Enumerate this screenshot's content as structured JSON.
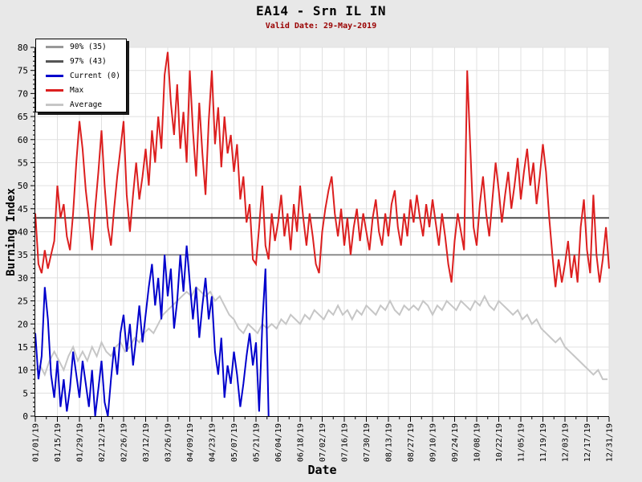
{
  "chart_data": {
    "type": "line",
    "title": "EA14 - Srn IL IN",
    "subtitle": "Valid Date: 29-May-2019",
    "subtitle_color": "#990000",
    "xlabel": "Date",
    "ylabel": "Burning Index",
    "ylim": [
      0,
      80
    ],
    "y_tick_step": 5,
    "y_minor_tick_step": 1,
    "x_domain_days": [
      1,
      365
    ],
    "x_minor_tick_offset_days": 7,
    "grid": true,
    "background": "#e8e8e8",
    "plot_background": "#ffffff",
    "grid_color": "#e0e0e0",
    "axis_color": "#000000",
    "x_ticks": [
      {
        "label": "01/01/19",
        "day": 1
      },
      {
        "label": "01/15/19",
        "day": 15
      },
      {
        "label": "01/29/19",
        "day": 29
      },
      {
        "label": "02/12/19",
        "day": 43
      },
      {
        "label": "02/26/19",
        "day": 57
      },
      {
        "label": "03/12/19",
        "day": 71
      },
      {
        "label": "03/26/19",
        "day": 85
      },
      {
        "label": "04/09/19",
        "day": 99
      },
      {
        "label": "04/23/19",
        "day": 113
      },
      {
        "label": "05/07/19",
        "day": 127
      },
      {
        "label": "05/21/19",
        "day": 141
      },
      {
        "label": "06/04/19",
        "day": 155
      },
      {
        "label": "06/18/19",
        "day": 169
      },
      {
        "label": "07/02/19",
        "day": 183
      },
      {
        "label": "07/16/19",
        "day": 197
      },
      {
        "label": "07/30/19",
        "day": 211
      },
      {
        "label": "08/13/19",
        "day": 225
      },
      {
        "label": "08/27/19",
        "day": 239
      },
      {
        "label": "09/10/19",
        "day": 253
      },
      {
        "label": "09/24/19",
        "day": 267
      },
      {
        "label": "10/08/19",
        "day": 281
      },
      {
        "label": "10/22/19",
        "day": 295
      },
      {
        "label": "11/05/19",
        "day": 309
      },
      {
        "label": "11/19/19",
        "day": 323
      },
      {
        "label": "12/03/19",
        "day": 337
      },
      {
        "label": "12/17/19",
        "day": 351
      },
      {
        "label": "12/31/19",
        "day": 365
      }
    ],
    "thresholds": [
      {
        "key": "90pct",
        "name": "90% (35)",
        "value": 35,
        "color": "#8c8c8c",
        "stroke_width": 2
      },
      {
        "key": "97pct",
        "name": "97% (43)",
        "value": 43,
        "color": "#4d4d4d",
        "stroke_width": 2
      }
    ],
    "series": [
      {
        "key": "average",
        "name": "Average",
        "color": "#c6c6c6",
        "stroke_width": 2,
        "start_day": 1,
        "step_days": 3,
        "values": [
          10,
          11,
          9,
          12,
          14,
          12,
          10,
          13,
          15,
          12,
          14,
          12,
          15,
          13,
          16,
          14,
          13,
          15,
          16,
          14,
          15,
          17,
          16,
          18,
          19,
          18,
          20,
          22,
          23,
          24,
          25,
          26,
          27,
          26,
          28,
          27,
          26,
          27,
          25,
          26,
          24,
          22,
          21,
          19,
          18,
          20,
          19,
          18,
          20,
          19,
          20,
          19,
          21,
          20,
          22,
          21,
          20,
          22,
          21,
          23,
          22,
          21,
          23,
          22,
          24,
          22,
          23,
          21,
          23,
          22,
          24,
          23,
          22,
          24,
          23,
          25,
          23,
          22,
          24,
          23,
          24,
          23,
          25,
          24,
          22,
          24,
          23,
          25,
          24,
          23,
          25,
          24,
          23,
          25,
          24,
          26,
          24,
          23,
          25,
          24,
          23,
          22,
          23,
          21,
          22,
          20,
          21,
          19,
          18,
          17,
          16,
          17,
          15,
          14,
          13,
          12,
          11,
          10,
          9,
          10,
          8,
          8
        ]
      },
      {
        "key": "current",
        "name": "Current (0)",
        "color": "#0000cc",
        "stroke_width": 2,
        "start_day": 1,
        "step_days": 2,
        "values": [
          18,
          8,
          13,
          28,
          21,
          9,
          4,
          12,
          2,
          8,
          1,
          6,
          14,
          9,
          4,
          12,
          7,
          2,
          10,
          0,
          6,
          12,
          3,
          0,
          8,
          15,
          9,
          18,
          22,
          14,
          20,
          11,
          17,
          24,
          16,
          22,
          28,
          33,
          24,
          30,
          21,
          35,
          26,
          32,
          19,
          25,
          35,
          27,
          37,
          29,
          21,
          28,
          17,
          24,
          30,
          21,
          26,
          14,
          9,
          17,
          4,
          11,
          7,
          14,
          9,
          2,
          7,
          13,
          18,
          11,
          16,
          1,
          20,
          32,
          0
        ]
      },
      {
        "key": "max",
        "name": "Max",
        "color": "#dc1f1f",
        "stroke_width": 2,
        "start_day": 1,
        "step_days": 2,
        "values": [
          44,
          33,
          31,
          36,
          32,
          35,
          38,
          50,
          43,
          46,
          39,
          36,
          44,
          55,
          64,
          58,
          49,
          43,
          36,
          45,
          53,
          62,
          50,
          41,
          37,
          45,
          52,
          58,
          64,
          48,
          40,
          48,
          55,
          47,
          52,
          58,
          50,
          62,
          55,
          65,
          58,
          74,
          79,
          68,
          61,
          72,
          58,
          66,
          55,
          75,
          62,
          52,
          68,
          57,
          48,
          64,
          75,
          59,
          67,
          54,
          65,
          57,
          61,
          53,
          59,
          47,
          52,
          42,
          46,
          34,
          33,
          41,
          50,
          37,
          34,
          44,
          38,
          42,
          48,
          39,
          44,
          36,
          46,
          40,
          50,
          43,
          37,
          44,
          39,
          33,
          31,
          40,
          45,
          49,
          52,
          44,
          39,
          45,
          37,
          43,
          35,
          41,
          45,
          38,
          44,
          40,
          36,
          43,
          47,
          40,
          37,
          44,
          39,
          46,
          49,
          41,
          37,
          44,
          39,
          47,
          42,
          48,
          43,
          39,
          46,
          41,
          47,
          42,
          37,
          44,
          39,
          33,
          29,
          38,
          44,
          40,
          36,
          75,
          58,
          41,
          37,
          46,
          52,
          44,
          39,
          47,
          55,
          49,
          42,
          48,
          53,
          45,
          50,
          56,
          47,
          53,
          58,
          50,
          55,
          46,
          52,
          59,
          53,
          43,
          35,
          28,
          34,
          29,
          33,
          38,
          30,
          35,
          29,
          41,
          47,
          36,
          31,
          48,
          35,
          29,
          34,
          41,
          32
        ]
      }
    ],
    "legend": {
      "position": "top-left",
      "items": [
        {
          "label": "90% (35)",
          "color": "#999999"
        },
        {
          "label": "97% (43)",
          "color": "#555555"
        },
        {
          "label": "Current (0)",
          "color": "#0000cc"
        },
        {
          "label": "Max",
          "color": "#dc1f1f"
        },
        {
          "label": "Average",
          "color": "#c6c6c6"
        }
      ]
    }
  }
}
